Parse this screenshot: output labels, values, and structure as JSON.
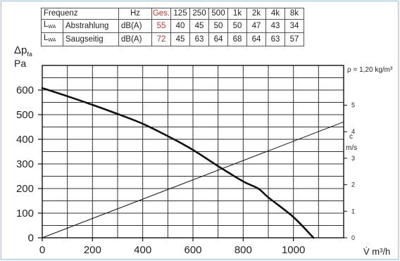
{
  "spec_table": {
    "header": {
      "label": "Frequenz",
      "unit": "Hz",
      "total_label": "Ges.",
      "bands": [
        "125",
        "250",
        "500",
        "1k",
        "2k",
        "4k",
        "8k"
      ]
    },
    "rows": [
      {
        "symbol": "L",
        "symbol_sub": "WA",
        "name": "Abstrahlung",
        "unit": "dB(A)",
        "total": "55",
        "values": [
          "40",
          "45",
          "50",
          "50",
          "47",
          "43",
          "34"
        ]
      },
      {
        "symbol": "L",
        "symbol_sub": "WA",
        "name": "Saugseitig",
        "unit": "dB(A)",
        "total": "72",
        "values": [
          "45",
          "63",
          "64",
          "68",
          "64",
          "63",
          "57"
        ]
      }
    ]
  },
  "chart_data": {
    "type": "line",
    "y_label_main": "Δp",
    "y_label_sub": "fa",
    "y_unit": "Pa",
    "x_label": "V̇ m³/h",
    "density_note": "ρ = 1,20 kg/m³",
    "y2_label": "c",
    "y2_unit": "m/s",
    "xlim": [
      0,
      1200
    ],
    "ylim": [
      0,
      700
    ],
    "y2lim": [
      0,
      6.5
    ],
    "x_ticks": [
      "0",
      "200",
      "400",
      "600",
      "800",
      "1000"
    ],
    "y_ticks": [
      "0",
      "100",
      "200",
      "300",
      "400",
      "500",
      "600"
    ],
    "y2_ticks": [
      "0",
      "1",
      "2",
      "3",
      "4",
      "5"
    ],
    "grid": true,
    "series": [
      {
        "axis": "left",
        "x": [
          0,
          100,
          200,
          300,
          400,
          500,
          600,
          700,
          800,
          860,
          900,
          1000,
          1080
        ],
        "y": [
          608,
          575,
          540,
          503,
          463,
          413,
          357,
          291,
          229,
          200,
          164,
          84,
          0
        ]
      },
      {
        "axis": "right",
        "x": [
          0,
          1200
        ],
        "y": [
          0,
          4.37
        ]
      }
    ],
    "colors": {
      "curve": "#111111",
      "grid": "#333333",
      "frame_border": "#9cc6e8",
      "total_highlight": "#c0392b"
    }
  }
}
